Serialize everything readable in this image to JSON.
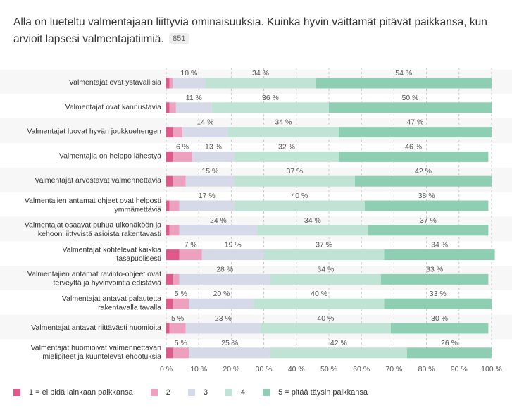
{
  "header": {
    "title": "Alla on lueteltu valmentajaan liittyviä ominaisuuksia. Kuinka hyvin väittämät pitävät paikkansa, kun arvioit lapsesi valmentajatiimiä.",
    "count_badge": "851"
  },
  "colors": {
    "s1": "#e0598b",
    "s2": "#eea1bf",
    "s3": "#d6dae8",
    "s4": "#bfe3d4",
    "s5": "#8ecfb3"
  },
  "chart_data": {
    "type": "bar",
    "orientation": "horizontal",
    "stacked": true,
    "categories": [
      "Valmentajat ovat ystävällisiä",
      "Valmentajat ovat kannustavia",
      "Valmentajat luovat hyvän joukkuehengen",
      "Valmentajia on helppo lähestyä",
      "Valmentajat arvostavat valmennettavia",
      "Valmentajien antamat ohjeet ovat helposti ymmärrettäviä",
      "Valmentajat osaavat puhua ulkonäköön ja kehoon liittyvistä asioista rakentavasti",
      "Valmentajat kohtelevat kaikkia tasapuolisesti",
      "Valmentajien antamat ravinto-ohjeet ovat terveyttä ja hyvinvointia edistäviä",
      "Valmentajat antavat palautetta rakentavalla tavalla",
      "Valmentajat antavat riittävästi huomioita",
      "Valmentajat huomioivat valmennettavan mielipiteet ja kuuntelevat ehdotuksia"
    ],
    "series": [
      {
        "name": "1 = ei pidä lainkaan paikkansa",
        "values": [
          1,
          1,
          2,
          2,
          2,
          1,
          1,
          4,
          2,
          2,
          1,
          2
        ]
      },
      {
        "name": "2",
        "values": [
          1,
          2,
          3,
          6,
          4,
          3,
          3,
          7,
          2,
          5,
          5,
          5
        ]
      },
      {
        "name": "3",
        "values": [
          10,
          11,
          14,
          13,
          15,
          17,
          24,
          19,
          28,
          20,
          23,
          25
        ]
      },
      {
        "name": "4",
        "values": [
          34,
          36,
          34,
          32,
          37,
          40,
          34,
          37,
          34,
          40,
          40,
          42
        ]
      },
      {
        "name": "5 = pitää täysin paikkansa",
        "values": [
          54,
          50,
          47,
          46,
          42,
          38,
          37,
          34,
          33,
          33,
          30,
          26
        ]
      }
    ],
    "data_labels": [
      [
        null,
        null,
        "10 %",
        "34 %",
        "54 %"
      ],
      [
        null,
        null,
        "11 %",
        "36 %",
        "50 %"
      ],
      [
        null,
        null,
        "14 %",
        "34 %",
        "47 %"
      ],
      [
        null,
        "6 %",
        "13 %",
        "32 %",
        "46 %"
      ],
      [
        null,
        null,
        "15 %",
        "37 %",
        "42 %"
      ],
      [
        null,
        null,
        "17 %",
        "40 %",
        "38 %"
      ],
      [
        null,
        null,
        "24 %",
        "34 %",
        "37 %"
      ],
      [
        null,
        "7 %",
        "19 %",
        "37 %",
        "34 %"
      ],
      [
        null,
        null,
        "28 %",
        "34 %",
        "33 %"
      ],
      [
        null,
        "5 %",
        "20 %",
        "40 %",
        "33 %"
      ],
      [
        null,
        "5 %",
        "23 %",
        "40 %",
        "30 %"
      ],
      [
        null,
        "5 %",
        "25 %",
        "42 %",
        "26 %"
      ]
    ],
    "x_ticks": [
      "0 %",
      "10 %",
      "20 %",
      "30 %",
      "40 %",
      "50 %",
      "60 %",
      "70 %",
      "80 %",
      "90 %",
      "100 %"
    ],
    "xlim": [
      0,
      100
    ],
    "grid": true,
    "legend_position": "bottom-left"
  }
}
